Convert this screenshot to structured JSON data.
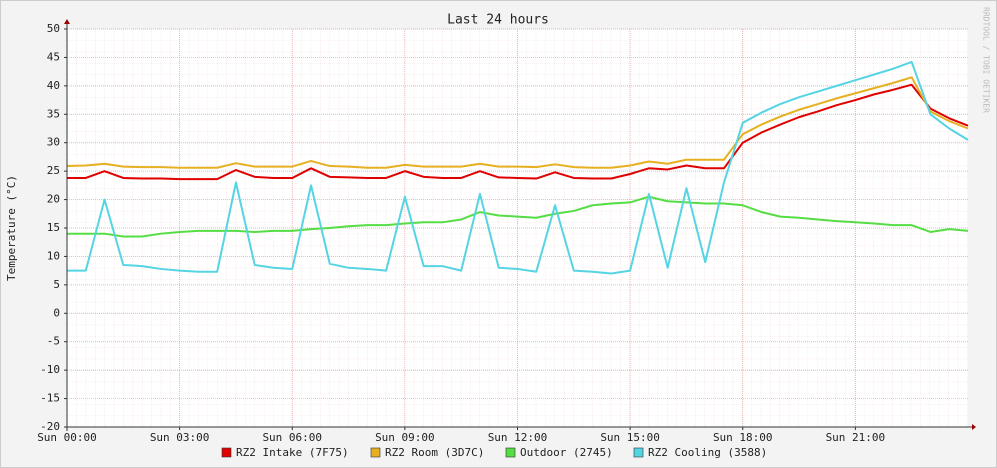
{
  "chart_data": {
    "type": "line",
    "title": "Last 24 hours",
    "y_label": "Temperature (°C)",
    "watermark": "RRDTOOL / TOBI OETIKER",
    "x": [
      0,
      0.5,
      1,
      1.5,
      2,
      2.5,
      3,
      3.5,
      4,
      4.5,
      5,
      5.5,
      6,
      6.5,
      7,
      7.5,
      8,
      8.5,
      9,
      9.5,
      10,
      10.5,
      11,
      11.5,
      12,
      12.5,
      13,
      13.5,
      14,
      14.5,
      15,
      15.5,
      16,
      16.5,
      17,
      17.5,
      18,
      18.5,
      19,
      19.5,
      20,
      20.5,
      21,
      21.5,
      22,
      22.5,
      23,
      23.5,
      24
    ],
    "xlim": [
      0,
      24
    ],
    "xticks": [
      {
        "value": 0,
        "label": "Sun 00:00"
      },
      {
        "value": 3,
        "label": "Sun 03:00"
      },
      {
        "value": 6,
        "label": "Sun 06:00"
      },
      {
        "value": 9,
        "label": "Sun 09:00"
      },
      {
        "value": 12,
        "label": "Sun 12:00"
      },
      {
        "value": 15,
        "label": "Sun 15:00"
      },
      {
        "value": 18,
        "label": "Sun 18:00"
      },
      {
        "value": 21,
        "label": "Sun 21:00"
      }
    ],
    "ylim": [
      -20,
      50
    ],
    "yticks": [
      -20,
      -15,
      -10,
      -5,
      0,
      5,
      10,
      15,
      20,
      25,
      30,
      35,
      40,
      45,
      50
    ],
    "grid": true,
    "series": [
      {
        "name": "RZ2 Intake (7F75)",
        "color": "#e00000",
        "values": [
          23.8,
          23.8,
          25,
          23.8,
          23.7,
          23.7,
          23.6,
          23.6,
          23.6,
          25.2,
          24,
          23.8,
          23.8,
          25.5,
          24,
          23.9,
          23.8,
          23.8,
          25,
          24,
          23.8,
          23.8,
          25,
          23.9,
          23.8,
          23.7,
          24.8,
          23.8,
          23.7,
          23.7,
          24.5,
          25.5,
          25.3,
          26,
          25.5,
          25.5,
          30,
          31.8,
          33.2,
          34.5,
          35.5,
          36.6,
          37.5,
          38.5,
          39.3,
          40.2,
          36,
          34.3,
          33
        ]
      },
      {
        "name": "RZ2 Room (3D7C)",
        "color": "#e6b020",
        "values": [
          25.9,
          26,
          26.3,
          25.8,
          25.7,
          25.7,
          25.6,
          25.6,
          25.6,
          26.4,
          25.8,
          25.8,
          25.8,
          26.8,
          25.9,
          25.8,
          25.6,
          25.6,
          26.1,
          25.8,
          25.8,
          25.8,
          26.3,
          25.8,
          25.8,
          25.7,
          26.2,
          25.7,
          25.6,
          25.6,
          26,
          26.7,
          26.3,
          27,
          27,
          27,
          31.5,
          33.2,
          34.6,
          35.8,
          36.8,
          37.8,
          38.7,
          39.6,
          40.5,
          41.5,
          35.5,
          33.8,
          32.5
        ]
      },
      {
        "name": "Outdoor (2745)",
        "color": "#55dd44",
        "values": [
          14,
          14,
          14,
          13.5,
          13.5,
          14,
          14.3,
          14.5,
          14.5,
          14.5,
          14.3,
          14.5,
          14.5,
          14.8,
          15,
          15.3,
          15.5,
          15.5,
          15.8,
          16,
          16,
          16.5,
          17.8,
          17.2,
          17,
          16.8,
          17.5,
          18,
          19,
          19.3,
          19.5,
          20.5,
          19.7,
          19.5,
          19.3,
          19.3,
          19,
          17.8,
          17,
          16.8,
          16.5,
          16.2,
          16,
          15.8,
          15.5,
          15.5,
          14.3,
          14.8,
          14.5
        ]
      },
      {
        "name": "RZ2 Cooling (3588)",
        "color": "#55d4e4",
        "values": [
          7.5,
          7.5,
          20,
          8.5,
          8.3,
          7.8,
          7.5,
          7.3,
          7.3,
          23,
          8.5,
          8,
          7.8,
          22.5,
          8.7,
          8,
          7.8,
          7.5,
          20.5,
          8.3,
          8.3,
          7.5,
          21,
          8,
          7.8,
          7.3,
          19,
          7.5,
          7.3,
          7,
          7.5,
          21,
          8,
          22,
          9,
          23,
          33.5,
          35.3,
          36.8,
          38,
          39,
          40,
          41,
          42,
          43,
          44.2,
          35,
          32.5,
          30.5
        ]
      }
    ]
  }
}
